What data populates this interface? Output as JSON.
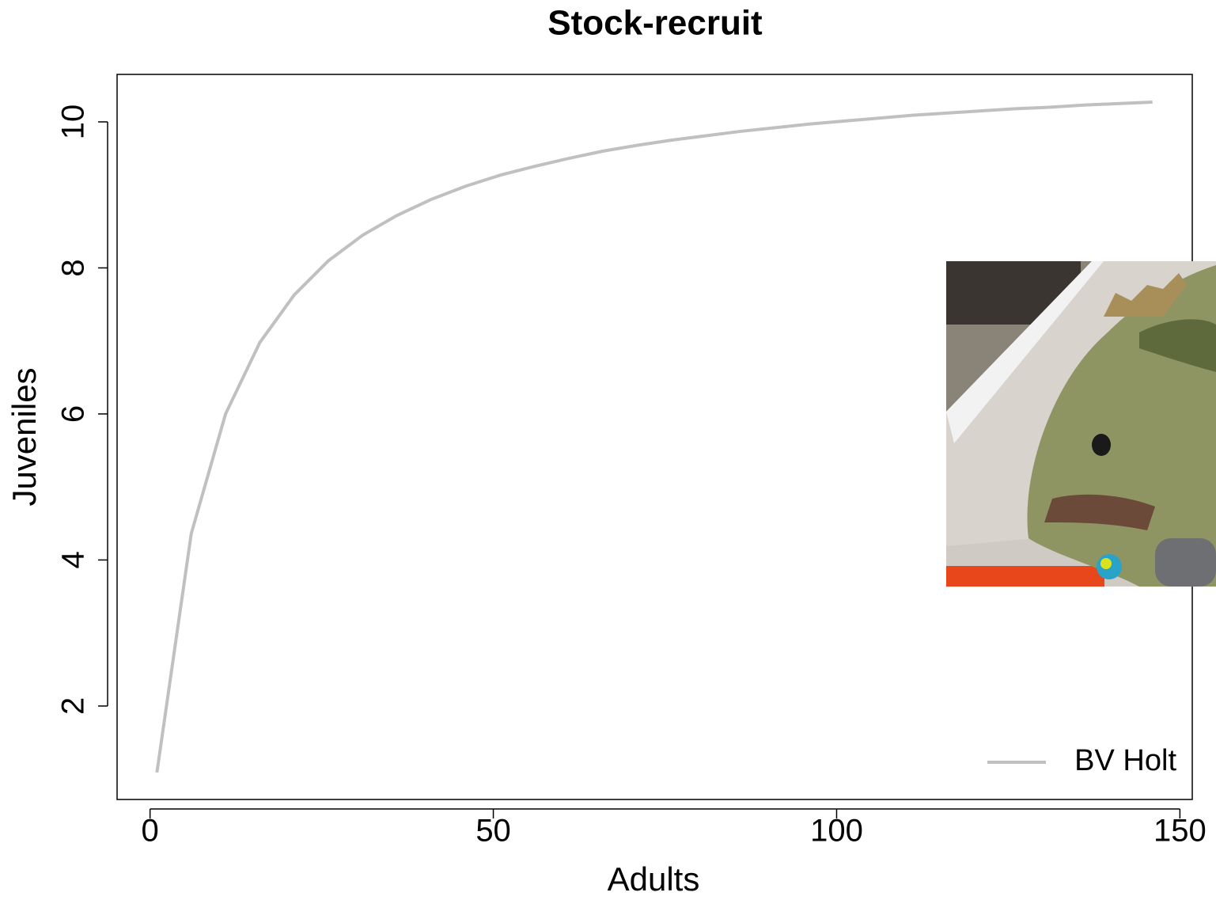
{
  "chart_data": {
    "type": "line",
    "title": "Stock-recruit",
    "x_label": "Adults",
    "y_label": "Juveniles",
    "x": [
      1,
      6,
      11,
      16,
      21,
      26,
      31,
      36,
      41,
      46,
      51,
      56,
      61,
      66,
      71,
      76,
      81,
      86,
      91,
      96,
      101,
      106,
      111,
      116,
      121,
      126,
      131,
      136,
      141,
      146
    ],
    "series": [
      {
        "name": "BV Holt",
        "color": "#c0c0c0",
        "values": [
          1.09,
          4.36,
          6.0,
          6.98,
          7.63,
          8.1,
          8.45,
          8.72,
          8.94,
          9.12,
          9.27,
          9.39,
          9.5,
          9.6,
          9.68,
          9.75,
          9.81,
          9.87,
          9.92,
          9.97,
          10.01,
          10.05,
          10.09,
          10.12,
          10.15,
          10.18,
          10.2,
          10.23,
          10.25,
          10.27
        ]
      }
    ],
    "xlim": [
      -4.8,
      151.8
    ],
    "xticks": [
      0,
      50,
      100,
      150
    ],
    "ylim": [
      0.72,
      10.65
    ],
    "yticks": [
      2,
      4,
      6,
      8,
      10
    ],
    "legend": "bottomright"
  }
}
